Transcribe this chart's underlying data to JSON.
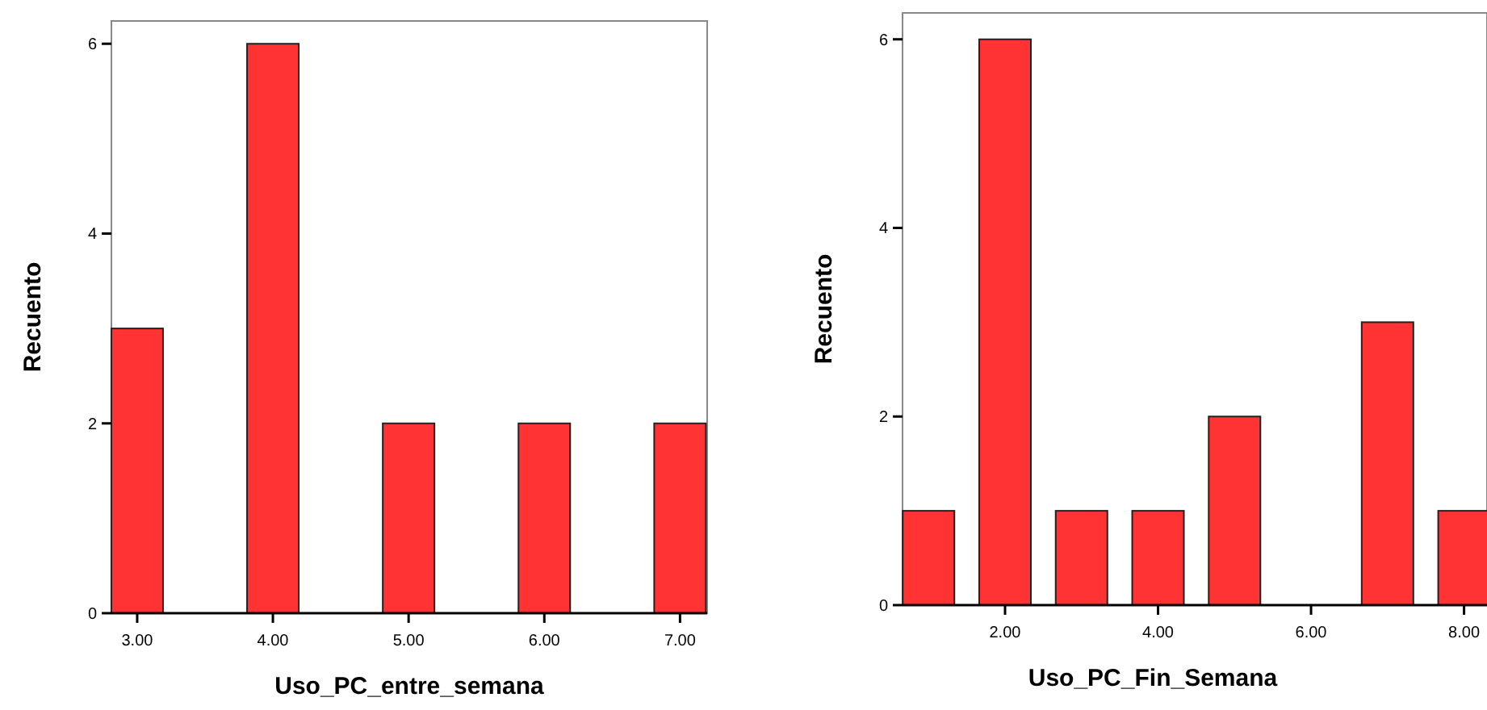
{
  "chart_data": [
    {
      "type": "bar",
      "xlabel": "Uso_PC_entre_semana",
      "ylabel": "Recuento",
      "x": [
        3,
        4,
        5,
        6,
        7
      ],
      "values": [
        3,
        6,
        2,
        2,
        2
      ],
      "color": "#ff3333",
      "xlim": [
        2.81,
        7.2
      ],
      "xticks": [
        {
          "value": 3,
          "label": "3.00"
        },
        {
          "value": 4,
          "label": "4.00"
        },
        {
          "value": 5,
          "label": "5.00"
        },
        {
          "value": 6,
          "label": "6.00"
        },
        {
          "value": 7,
          "label": "7.00"
        }
      ],
      "ylim": [
        0,
        6.24
      ],
      "yticks": [
        0,
        2,
        4,
        6
      ],
      "grid": false
    },
    {
      "type": "bar",
      "xlabel": "Uso_PC_Fin_Semana",
      "ylabel": "Recuento",
      "x": [
        1,
        2,
        3,
        4,
        5,
        6,
        7,
        8
      ],
      "values": [
        1,
        6,
        1,
        1,
        2,
        0,
        3,
        1
      ],
      "color": "#ff3333",
      "xlim": [
        0.66,
        8.3
      ],
      "xticks": [
        {
          "value": 2,
          "label": "2.00"
        },
        {
          "value": 4,
          "label": "4.00"
        },
        {
          "value": 6,
          "label": "6.00"
        },
        {
          "value": 8,
          "label": "8.00"
        }
      ],
      "ylim": [
        0,
        6.28
      ],
      "yticks": [
        0,
        2,
        4,
        6
      ],
      "grid": false
    }
  ]
}
